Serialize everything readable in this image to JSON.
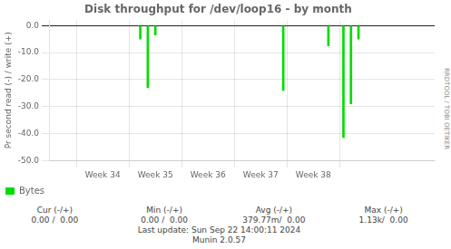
{
  "chart_data": {
    "type": "bar",
    "title": "Disk throughput for /dev/loop16 - by month",
    "ylabel": "Pr second read (-) / write (+)",
    "x": [
      1727136000,
      1727222400,
      1727308800,
      1728777600,
      1729296000,
      1729468800,
      1729555200,
      1729641600
    ],
    "series": [
      {
        "name": "Bytes",
        "color": "#00dd00",
        "values": [
          -5.0,
          -23.0,
          -3.5,
          -24.0,
          -7.5,
          -41.5,
          -29.0,
          -5.0
        ]
      }
    ],
    "xlim": [
      1726531200,
      1730073600
    ],
    "xticks": [
      {
        "value": 1726704000,
        "label": "Week 34"
      },
      {
        "value": 1727308800,
        "label": "Week 35"
      },
      {
        "value": 1727913600,
        "label": "Week 36"
      },
      {
        "value": 1728518400,
        "label": "Week 37"
      },
      {
        "value": 1729123200,
        "label": "Week 38"
      }
    ],
    "ylim": [
      -50,
      2
    ],
    "yticks": [
      {
        "value": 0.0,
        "label": "0.0"
      },
      {
        "value": -10.0,
        "label": "-10.0"
      },
      {
        "value": -20.0,
        "label": "-20.0"
      },
      {
        "value": -30.0,
        "label": "-30.0"
      },
      {
        "value": -40.0,
        "label": "-40.0"
      },
      {
        "value": -50.0,
        "label": "-50.0"
      }
    ],
    "grid": true,
    "legend": "bottom",
    "annotations": [
      "Cur (-/+)",
      "Min (-/+)",
      "Avg (-/+)",
      "Max (-/+)",
      "0.00 /  0.00",
      "0.00 /  0.00",
      "379.77m/  0.00",
      "1.13k/  0.00",
      "Last update: Sun Sep 22 14:00:11 2024",
      "Munin 2.0.57",
      "RRDTOOL / TOBI OETIKER"
    ]
  }
}
